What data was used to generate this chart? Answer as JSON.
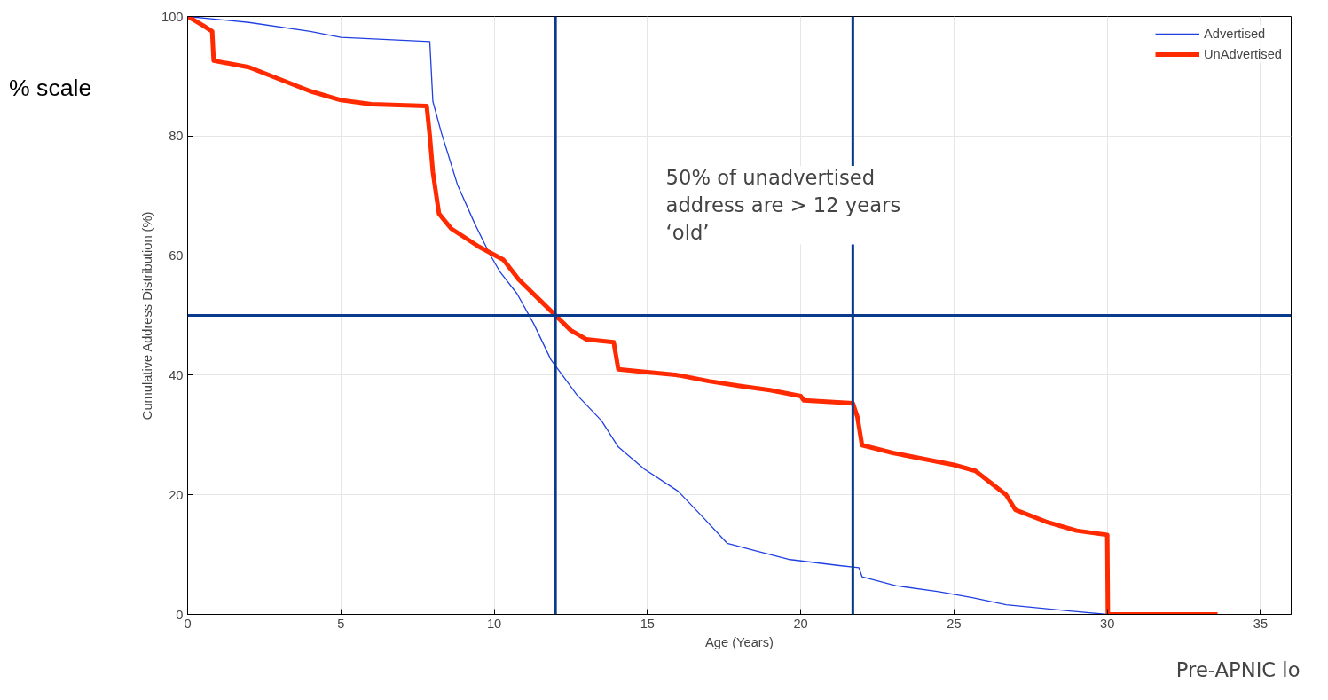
{
  "chart_data": {
    "type": "line",
    "xlabel": "Age (Years)",
    "ylabel": "Cumulative Address Distribution (%)",
    "xlim": [
      0,
      36
    ],
    "ylim": [
      0,
      100
    ],
    "xticks": [
      0,
      5,
      10,
      15,
      20,
      25,
      30,
      35
    ],
    "yticks": [
      0,
      20,
      40,
      60,
      80,
      100
    ],
    "grid": true,
    "legend": "top right",
    "marker": "none",
    "line_style": "solid",
    "series": [
      {
        "name": "Advertised",
        "color": "#2040e0",
        "x": [
          0,
          2,
          4,
          5,
          7.9,
          8.0,
          8.27,
          8.8,
          9.37,
          9.86,
          10.2,
          10.75,
          11.3,
          11.85,
          12.7,
          13.5,
          14.05,
          14.9,
          16,
          16.8,
          17.6,
          18.7,
          19.6,
          21.2,
          21.9,
          22,
          23.1,
          24.5,
          25.6,
          26.7,
          28.7,
          30
        ],
        "values": [
          100,
          99,
          97.5,
          96.5,
          95.8,
          85.8,
          80.7,
          71.9,
          65.3,
          60.2,
          57.2,
          53.6,
          48.5,
          42.6,
          36.7,
          32.4,
          28,
          24.3,
          20.6,
          16.3,
          11.9,
          10.4,
          9.2,
          8.2,
          7.8,
          6.3,
          4.8,
          3.8,
          2.8,
          1.6,
          0.6,
          0
        ]
      },
      {
        "name": "UnAdvertised",
        "color": "#ff2a00",
        "x": [
          0,
          0.5,
          0.8,
          0.85,
          2,
          3,
          4,
          5,
          6,
          7.8,
          7.9,
          8.0,
          8.2,
          8.6,
          9.5,
          10.3,
          10.8,
          11.5,
          12,
          12.5,
          13,
          13.9,
          14.05,
          15,
          16,
          17,
          18,
          19,
          20,
          20.1,
          21.7,
          21.85,
          22,
          23,
          24,
          25,
          25.7,
          26.2,
          26.7,
          27,
          28,
          29,
          30,
          30.02,
          33.6
        ],
        "values": [
          100,
          98.5,
          97.5,
          92.6,
          91.5,
          89.5,
          87.5,
          86,
          85.3,
          85,
          80,
          74,
          67,
          64.5,
          61.5,
          59.3,
          56,
          52.5,
          50,
          47.5,
          46,
          45.5,
          41,
          40.5,
          40,
          39,
          38.2,
          37.5,
          36.5,
          35.8,
          35.3,
          33,
          28.3,
          27,
          26,
          25,
          24,
          22,
          20,
          17.5,
          15.5,
          14,
          13.3,
          0,
          0
        ]
      }
    ],
    "ref_lines": [
      {
        "axis": "y",
        "value": 50,
        "color": "#0a3a8c"
      },
      {
        "axis": "x",
        "value": 12,
        "color": "#0a3a8c"
      },
      {
        "axis": "x",
        "value": 21.7,
        "color": "#0a3a8c"
      }
    ],
    "annotations": [
      "% scale",
      "50% of unadvertised\naddress are > 12 years\n‘old’",
      "Pre-APNIC lo"
    ]
  }
}
